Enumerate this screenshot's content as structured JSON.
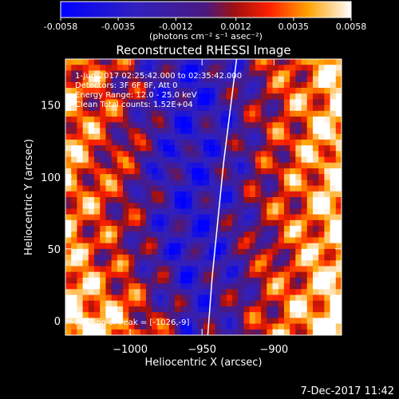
{
  "colorbar": {
    "tick_labels": [
      "-0.0058",
      "-0.0035",
      "-0.0012",
      "0.0012",
      "0.0035",
      "0.0058"
    ],
    "tick_values": [
      -0.0058,
      -0.0035,
      -0.0012,
      0.0012,
      0.0035,
      0.0058
    ],
    "range": [
      -0.0058,
      0.0058
    ],
    "unit_label": "(photons cm⁻² s⁻¹ asec⁻²)"
  },
  "chart_data": {
    "type": "heatmap",
    "title": "Reconstructed RHESSI Image",
    "xlabel": "Heliocentric X (arcsec)",
    "ylabel": "Heliocentric Y (arcsec)",
    "xlim": [
      -1045,
      -853
    ],
    "ylim": [
      -10,
      182
    ],
    "x_ticks": [
      -1000,
      -950,
      -900
    ],
    "x_tick_labels": [
      "−1000",
      "−950",
      "−900"
    ],
    "y_ticks": [
      0,
      50,
      100,
      150
    ],
    "y_tick_labels": [
      "0",
      "50",
      "100",
      "150"
    ],
    "grid": false,
    "limb_points": [
      [
        -946,
        -10
      ],
      [
        -943,
        30
      ],
      [
        -939,
        70
      ],
      [
        -935,
        110
      ],
      [
        -930,
        150
      ],
      [
        -926,
        182
      ]
    ],
    "annotations": [
      "1-Jun-2017 02:25:42.000 to 02:35:42.000",
      "Detectors: 3F 6F 8F, Att 0",
      "Energy Range: 12.0 - 25.0 keV",
      "Clean     Total counts: 1.52E+04"
    ],
    "peak_label": "Position of Peak = [-1026,-9]"
  },
  "footer": {
    "timestamp": "7-Dec-2017 11:42"
  }
}
